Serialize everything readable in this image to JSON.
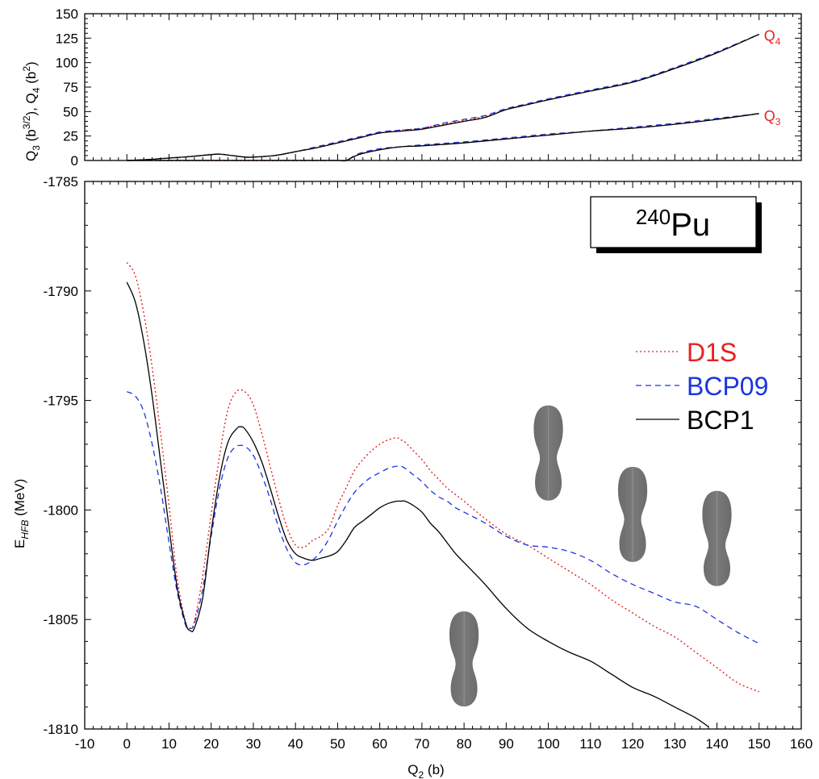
{
  "chart_data": [
    {
      "type": "line",
      "panel": "top",
      "ylabel": "Q3 (b3/2), Q4 (b2)",
      "ylabel_parts": {
        "q3": "Q",
        "q3sub": "3",
        "q3unit": " (b",
        "q3sup": "3/2",
        "sep": "), Q",
        "q4sub": "4",
        "q4unit": " (b",
        "q4sup": "2",
        "end": ")"
      },
      "xlim": [
        -10,
        160
      ],
      "ylim": [
        0,
        150
      ],
      "y_ticks": [
        0,
        25,
        50,
        75,
        100,
        125,
        150
      ],
      "curve_labels": [
        {
          "text": "Q",
          "sub": "4",
          "color": "#e8201f",
          "at_x": 150,
          "at_y": 129
        },
        {
          "text": "Q",
          "sub": "3",
          "color": "#e8201f",
          "at_x": 150,
          "at_y": 47
        }
      ],
      "series": [
        {
          "name": "Q4 (D1S)",
          "color": "#e8201f",
          "dash": "2,3",
          "x": [
            0,
            5,
            10,
            15,
            20,
            22,
            25,
            28,
            30,
            35,
            40,
            45,
            50,
            55,
            60,
            65,
            70,
            75,
            80,
            85,
            90,
            95,
            100,
            110,
            120,
            130,
            140,
            150
          ],
          "y": [
            0,
            1,
            2.5,
            4,
            6,
            6.5,
            5,
            3.5,
            3.5,
            5,
            9,
            13,
            18,
            23,
            28,
            31,
            33,
            37,
            41,
            45,
            52,
            57,
            62,
            71,
            80,
            94,
            110,
            129
          ]
        },
        {
          "name": "Q4 (BCP09)",
          "color": "#1a35e0",
          "dash": "7,5",
          "x": [
            0,
            5,
            10,
            15,
            20,
            22,
            25,
            28,
            30,
            35,
            40,
            45,
            50,
            55,
            60,
            65,
            70,
            75,
            80,
            85,
            90,
            95,
            100,
            110,
            120,
            130,
            140,
            150
          ],
          "y": [
            0,
            1,
            2.5,
            4,
            6,
            6.5,
            5,
            3.5,
            3.5,
            5,
            9,
            14,
            19,
            24,
            29,
            31,
            33,
            38,
            42,
            46,
            53,
            58,
            63,
            72,
            81,
            95,
            111,
            129
          ]
        },
        {
          "name": "Q4 (BCP1)",
          "color": "#000000",
          "dash": "",
          "x": [
            0,
            5,
            10,
            15,
            20,
            22,
            25,
            28,
            30,
            35,
            40,
            45,
            50,
            55,
            60,
            65,
            70,
            75,
            80,
            85,
            90,
            95,
            100,
            110,
            120,
            130,
            140,
            150
          ],
          "y": [
            0,
            1,
            2.5,
            4,
            6,
            6.5,
            5,
            3.5,
            3.5,
            5,
            9,
            13,
            18,
            23,
            28,
            30,
            32,
            36,
            40,
            44,
            52,
            57,
            62,
            71,
            80,
            94,
            110,
            129
          ]
        },
        {
          "name": "Q3 (D1S)",
          "color": "#e8201f",
          "dash": "2,3",
          "x": [
            0,
            10,
            20,
            30,
            40,
            50,
            52,
            55,
            60,
            65,
            70,
            80,
            90,
            100,
            110,
            120,
            130,
            140,
            150
          ],
          "y": [
            0,
            0,
            0,
            0,
            0,
            0,
            0,
            6,
            11,
            14,
            15,
            18,
            22,
            26,
            30,
            33,
            37,
            42,
            48
          ]
        },
        {
          "name": "Q3 (BCP09)",
          "color": "#1a35e0",
          "dash": "7,5",
          "x": [
            0,
            10,
            20,
            30,
            40,
            50,
            52,
            55,
            60,
            65,
            70,
            80,
            90,
            100,
            110,
            120,
            130,
            140,
            150
          ],
          "y": [
            0,
            0,
            0,
            0,
            0,
            0,
            0,
            7,
            12,
            14,
            16,
            19,
            23,
            27,
            30,
            34,
            38,
            43,
            48
          ]
        },
        {
          "name": "Q3 (BCP1)",
          "color": "#000000",
          "dash": "",
          "x": [
            0,
            10,
            20,
            30,
            40,
            50,
            52,
            55,
            60,
            65,
            70,
            80,
            90,
            100,
            110,
            120,
            130,
            140,
            150
          ],
          "y": [
            0,
            0,
            0,
            0,
            0,
            0,
            0,
            6,
            11,
            14,
            15,
            18,
            22,
            26,
            30,
            33,
            37,
            42,
            48
          ]
        }
      ]
    },
    {
      "type": "line",
      "panel": "bottom",
      "title": "240Pu",
      "title_sup": "240",
      "title_main": "Pu",
      "xlabel": "Q2 (b)",
      "xlabel_main": "Q",
      "xlabel_sub": "2",
      "xlabel_unit": " (b)",
      "ylabel": "EHFB (MeV)",
      "ylabel_main": "E",
      "ylabel_sub": "HFB",
      "ylabel_unit": " (MeV)",
      "xlim": [
        -10,
        160
      ],
      "ylim": [
        -1810,
        -1785
      ],
      "x_ticks": [
        -10,
        0,
        10,
        20,
        30,
        40,
        50,
        60,
        70,
        80,
        90,
        100,
        110,
        120,
        130,
        140,
        150,
        160
      ],
      "y_ticks": [
        -1810,
        -1805,
        -1800,
        -1795,
        -1790,
        -1785
      ],
      "legend_position": "right",
      "series": [
        {
          "name": "D1S",
          "color": "#e8201f",
          "dash": "2,3",
          "x": [
            0,
            2,
            4,
            6,
            8,
            10,
            12,
            14,
            15,
            16,
            18,
            20,
            22,
            24,
            26,
            28,
            30,
            32,
            34,
            36,
            38,
            40,
            42,
            44,
            46,
            48,
            50,
            52,
            54,
            56,
            58,
            60,
            62,
            64,
            65,
            66,
            68,
            70,
            72,
            74,
            76,
            78,
            80,
            85,
            90,
            95,
            100,
            105,
            110,
            115,
            120,
            125,
            130,
            135,
            140,
            145,
            150
          ],
          "y": [
            -1788.7,
            -1789.3,
            -1791.0,
            -1793.5,
            -1796.5,
            -1799.8,
            -1803.2,
            -1805.2,
            -1805.4,
            -1805.1,
            -1803.0,
            -1800.2,
            -1797.5,
            -1795.4,
            -1794.6,
            -1794.6,
            -1795.2,
            -1796.5,
            -1798.0,
            -1799.5,
            -1800.8,
            -1801.6,
            -1801.7,
            -1801.4,
            -1801.2,
            -1800.8,
            -1799.8,
            -1799.0,
            -1798.2,
            -1797.7,
            -1797.3,
            -1797.0,
            -1796.8,
            -1796.7,
            -1796.8,
            -1796.9,
            -1797.3,
            -1797.7,
            -1798.2,
            -1798.6,
            -1799.0,
            -1799.3,
            -1799.6,
            -1800.4,
            -1801.1,
            -1801.6,
            -1802.2,
            -1802.8,
            -1803.4,
            -1804.1,
            -1804.7,
            -1805.3,
            -1805.8,
            -1806.5,
            -1807.2,
            -1807.9,
            -1808.3
          ]
        },
        {
          "name": "BCP09",
          "color": "#1a35e0",
          "dash": "7,5",
          "x": [
            0,
            2,
            4,
            6,
            8,
            10,
            12,
            14,
            15,
            16,
            18,
            20,
            22,
            24,
            26,
            28,
            30,
            32,
            34,
            36,
            38,
            40,
            42,
            44,
            46,
            48,
            50,
            52,
            54,
            56,
            58,
            60,
            62,
            64,
            65,
            66,
            68,
            70,
            72,
            74,
            76,
            78,
            80,
            85,
            90,
            95,
            100,
            105,
            110,
            115,
            120,
            125,
            130,
            135,
            140,
            145,
            150
          ],
          "y": [
            -1794.6,
            -1794.8,
            -1795.5,
            -1797.0,
            -1799.0,
            -1801.5,
            -1803.8,
            -1805.3,
            -1805.4,
            -1805.2,
            -1803.6,
            -1801.2,
            -1799.0,
            -1797.6,
            -1797.1,
            -1797.1,
            -1797.5,
            -1798.4,
            -1799.5,
            -1800.8,
            -1801.8,
            -1802.4,
            -1802.5,
            -1802.3,
            -1801.9,
            -1801.3,
            -1800.5,
            -1799.8,
            -1799.2,
            -1798.8,
            -1798.5,
            -1798.3,
            -1798.1,
            -1798.0,
            -1798.0,
            -1798.1,
            -1798.4,
            -1798.7,
            -1799.1,
            -1799.4,
            -1799.6,
            -1799.9,
            -1800.1,
            -1800.6,
            -1801.2,
            -1801.6,
            -1801.7,
            -1801.9,
            -1802.3,
            -1802.9,
            -1803.4,
            -1803.8,
            -1804.2,
            -1804.4,
            -1805.0,
            -1805.6,
            -1806.1
          ]
        },
        {
          "name": "BCP1",
          "color": "#000000",
          "dash": "",
          "x": [
            0,
            2,
            4,
            6,
            8,
            10,
            12,
            14,
            15,
            16,
            18,
            20,
            22,
            24,
            26,
            27,
            28,
            30,
            32,
            34,
            36,
            38,
            40,
            42,
            44,
            46,
            48,
            50,
            52,
            54,
            56,
            58,
            60,
            62,
            64,
            65,
            66,
            68,
            70,
            72,
            74,
            76,
            78,
            80,
            85,
            90,
            95,
            100,
            105,
            110,
            115,
            120,
            125,
            130,
            135,
            138
          ],
          "y": [
            -1789.6,
            -1790.5,
            -1792.3,
            -1794.8,
            -1797.8,
            -1800.8,
            -1803.6,
            -1805.2,
            -1805.5,
            -1805.4,
            -1804.0,
            -1801.0,
            -1798.5,
            -1796.9,
            -1796.3,
            -1796.2,
            -1796.3,
            -1796.9,
            -1797.8,
            -1799.0,
            -1800.3,
            -1801.4,
            -1802.0,
            -1802.2,
            -1802.3,
            -1802.2,
            -1802.1,
            -1801.9,
            -1801.4,
            -1800.8,
            -1800.5,
            -1800.2,
            -1799.9,
            -1799.7,
            -1799.6,
            -1799.6,
            -1799.6,
            -1799.8,
            -1800.1,
            -1800.6,
            -1801.0,
            -1801.5,
            -1802.0,
            -1802.4,
            -1803.4,
            -1804.5,
            -1805.4,
            -1806.0,
            -1806.5,
            -1806.9,
            -1807.5,
            -1808.1,
            -1808.5,
            -1809.0,
            -1809.5,
            -1809.9
          ]
        }
      ],
      "shapes": [
        {
          "name": "nucleus-shape-q2-80",
          "at_x": 80,
          "at_y": -1806.8
        },
        {
          "name": "nucleus-shape-q2-100",
          "at_x": 100,
          "at_y": -1797.4
        },
        {
          "name": "nucleus-shape-q2-120",
          "at_x": 120,
          "at_y": -1800.2
        },
        {
          "name": "nucleus-shape-q2-140",
          "at_x": 140,
          "at_y": -1801.3
        }
      ]
    }
  ]
}
